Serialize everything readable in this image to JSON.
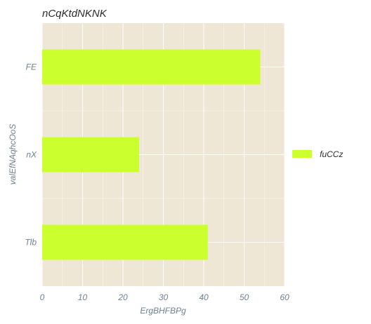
{
  "chart_data": {
    "type": "bar",
    "orientation": "horizontal",
    "title": "nCqKtdNKNK",
    "xlabel": "ErgBHFBPg",
    "ylabel": "valEfNAqhcOoS",
    "categories": [
      "FE",
      "nX",
      "Tlb"
    ],
    "series": [
      {
        "name": "fuCCz",
        "values": [
          54,
          24,
          41
        ]
      }
    ],
    "xlim": [
      0,
      60
    ],
    "xticks": [
      0,
      10,
      20,
      30,
      40,
      50,
      60
    ],
    "grid": true,
    "legend": "right",
    "colors": {
      "bar": "#ccff2e",
      "plot_background": "#efe7d5",
      "grid": "#ffffff",
      "text": "#6f8190",
      "title": "#2b2b2b"
    }
  }
}
